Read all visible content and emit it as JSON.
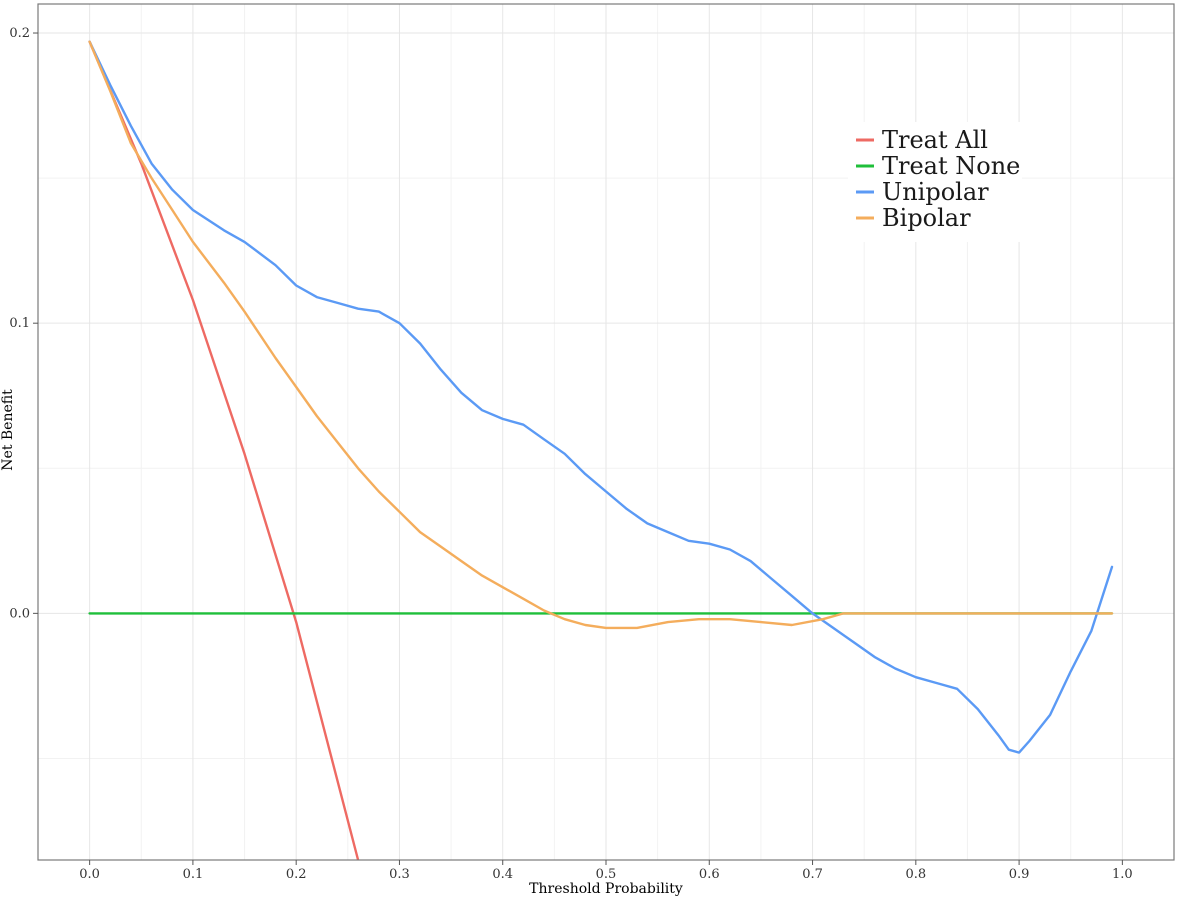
{
  "chart_data": {
    "type": "line",
    "title": "",
    "xlabel": "Threshold Probability",
    "ylabel": "Net Benefit",
    "xlim": [
      -0.05,
      1.05
    ],
    "ylim": [
      -0.085,
      0.21
    ],
    "x_ticks": [
      0.0,
      0.1,
      0.2,
      0.3,
      0.4,
      0.5,
      0.6,
      0.7,
      0.8,
      0.9,
      1.0
    ],
    "x_tick_labels": [
      "0.0",
      "0.1",
      "0.2",
      "0.3",
      "0.4",
      "0.5",
      "0.6",
      "0.7",
      "0.8",
      "0.9",
      "1.0"
    ],
    "y_ticks": [
      0.0,
      0.1,
      0.2
    ],
    "y_tick_labels": [
      "0.0",
      "0.1",
      "0.2"
    ],
    "y_minor_grid": [
      -0.05,
      0.05,
      0.15
    ],
    "x_minor_grid": [
      0.05,
      0.15,
      0.25,
      0.35,
      0.45,
      0.55,
      0.65,
      0.75,
      0.85,
      0.95
    ],
    "grid": true,
    "legend_position": "top-right",
    "series": [
      {
        "name": "Treat All",
        "color": "#ee6a63",
        "points": [
          [
            0.0,
            0.197
          ],
          [
            0.05,
            0.155
          ],
          [
            0.1,
            0.108
          ],
          [
            0.15,
            0.055
          ],
          [
            0.2,
            -0.003
          ],
          [
            0.26,
            -0.085
          ]
        ]
      },
      {
        "name": "Treat None",
        "color": "#1fbf3a",
        "points": [
          [
            0.0,
            0.0
          ],
          [
            0.99,
            0.0
          ]
        ]
      },
      {
        "name": "Unipolar",
        "color": "#5b9af5",
        "points": [
          [
            0.0,
            0.197
          ],
          [
            0.02,
            0.182
          ],
          [
            0.04,
            0.168
          ],
          [
            0.06,
            0.155
          ],
          [
            0.08,
            0.146
          ],
          [
            0.1,
            0.139
          ],
          [
            0.13,
            0.132
          ],
          [
            0.15,
            0.128
          ],
          [
            0.18,
            0.12
          ],
          [
            0.2,
            0.113
          ],
          [
            0.22,
            0.109
          ],
          [
            0.24,
            0.107
          ],
          [
            0.26,
            0.105
          ],
          [
            0.28,
            0.104
          ],
          [
            0.3,
            0.1
          ],
          [
            0.32,
            0.093
          ],
          [
            0.34,
            0.084
          ],
          [
            0.36,
            0.076
          ],
          [
            0.38,
            0.07
          ],
          [
            0.4,
            0.067
          ],
          [
            0.42,
            0.065
          ],
          [
            0.44,
            0.06
          ],
          [
            0.46,
            0.055
          ],
          [
            0.48,
            0.048
          ],
          [
            0.5,
            0.042
          ],
          [
            0.52,
            0.036
          ],
          [
            0.54,
            0.031
          ],
          [
            0.56,
            0.028
          ],
          [
            0.58,
            0.025
          ],
          [
            0.6,
            0.024
          ],
          [
            0.62,
            0.022
          ],
          [
            0.64,
            0.018
          ],
          [
            0.66,
            0.012
          ],
          [
            0.68,
            0.006
          ],
          [
            0.7,
            0.0
          ],
          [
            0.72,
            -0.005
          ],
          [
            0.74,
            -0.01
          ],
          [
            0.76,
            -0.015
          ],
          [
            0.78,
            -0.019
          ],
          [
            0.8,
            -0.022
          ],
          [
            0.82,
            -0.024
          ],
          [
            0.84,
            -0.026
          ],
          [
            0.86,
            -0.033
          ],
          [
            0.88,
            -0.042
          ],
          [
            0.89,
            -0.047
          ],
          [
            0.9,
            -0.048
          ],
          [
            0.91,
            -0.044
          ],
          [
            0.93,
            -0.035
          ],
          [
            0.95,
            -0.02
          ],
          [
            0.97,
            -0.006
          ],
          [
            0.99,
            0.016
          ]
        ]
      },
      {
        "name": "Bipolar",
        "color": "#f4ad5c",
        "points": [
          [
            0.0,
            0.197
          ],
          [
            0.02,
            0.18
          ],
          [
            0.04,
            0.162
          ],
          [
            0.06,
            0.15
          ],
          [
            0.08,
            0.139
          ],
          [
            0.1,
            0.128
          ],
          [
            0.13,
            0.114
          ],
          [
            0.15,
            0.104
          ],
          [
            0.18,
            0.088
          ],
          [
            0.2,
            0.078
          ],
          [
            0.22,
            0.068
          ],
          [
            0.24,
            0.059
          ],
          [
            0.26,
            0.05
          ],
          [
            0.28,
            0.042
          ],
          [
            0.3,
            0.035
          ],
          [
            0.32,
            0.028
          ],
          [
            0.34,
            0.023
          ],
          [
            0.36,
            0.018
          ],
          [
            0.38,
            0.013
          ],
          [
            0.4,
            0.009
          ],
          [
            0.42,
            0.005
          ],
          [
            0.44,
            0.001
          ],
          [
            0.46,
            -0.002
          ],
          [
            0.48,
            -0.004
          ],
          [
            0.5,
            -0.005
          ],
          [
            0.53,
            -0.005
          ],
          [
            0.56,
            -0.003
          ],
          [
            0.59,
            -0.002
          ],
          [
            0.62,
            -0.002
          ],
          [
            0.65,
            -0.003
          ],
          [
            0.68,
            -0.004
          ],
          [
            0.71,
            -0.002
          ],
          [
            0.73,
            0.0
          ],
          [
            0.75,
            0.0
          ],
          [
            0.8,
            0.0
          ],
          [
            0.9,
            0.0
          ],
          [
            0.99,
            0.0
          ]
        ]
      }
    ]
  }
}
